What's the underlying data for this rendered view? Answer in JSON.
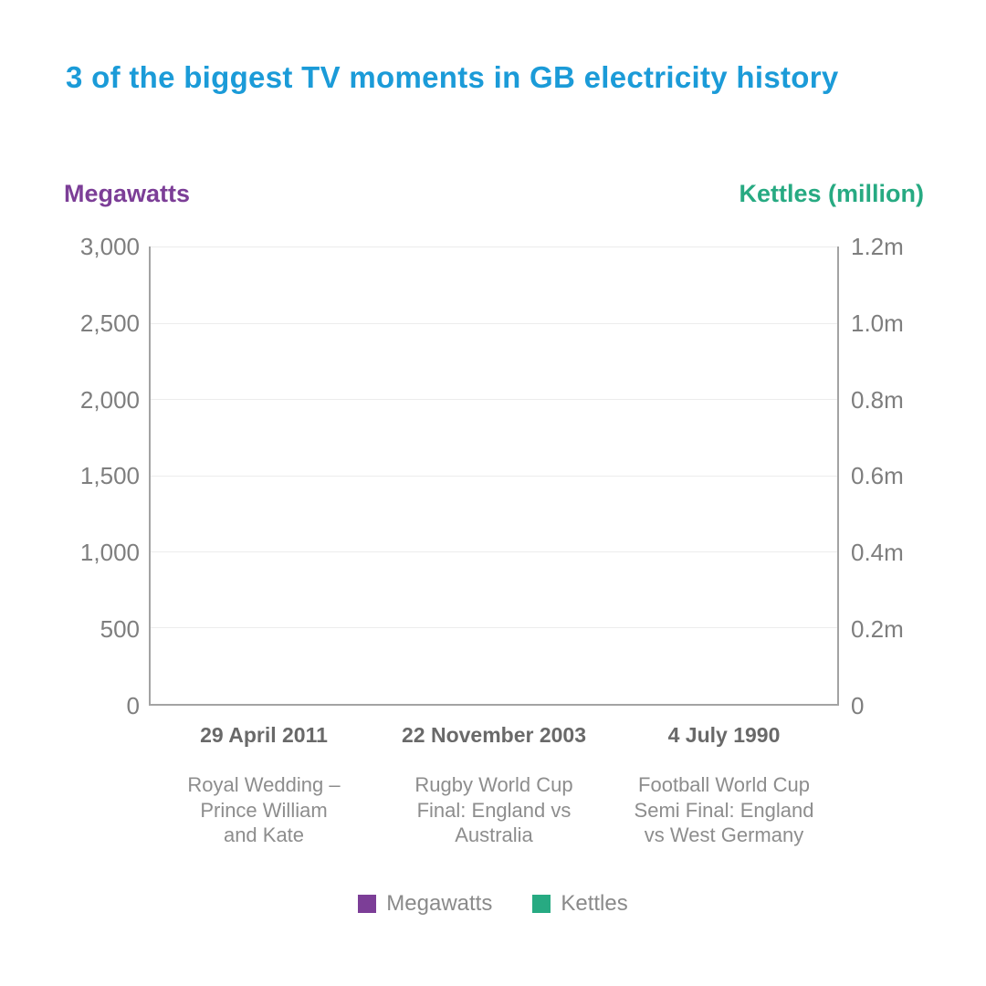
{
  "title": {
    "text": "3 of the biggest TV moments in GB electricity history",
    "color": "#1b9bd8"
  },
  "chart_data": {
    "type": "bar",
    "title": "3 of the biggest TV moments in GB electricity history",
    "categories": [
      {
        "date": "29 April 2011",
        "desc_lines": [
          "Royal Wedding –",
          "Prince William",
          "and Kate"
        ]
      },
      {
        "date": "22 November 2003",
        "desc_lines": [
          "Rugby World Cup",
          "Final: England vs",
          "Australia"
        ]
      },
      {
        "date": "4 July 1990",
        "desc_lines": [
          "Football World Cup",
          "Semi Final: England",
          "vs West Germany"
        ]
      }
    ],
    "left_axis": {
      "label": "Megawatts",
      "color": "#7c3e97",
      "tick_labels": [
        "3,000",
        "2,500",
        "2,000",
        "1,500",
        "1,000",
        "500",
        "0"
      ],
      "range": [
        0,
        3000
      ]
    },
    "right_axis": {
      "label": "Kettles (million)",
      "color": "#27aa82",
      "tick_labels": [
        "1.2m",
        "1.0m",
        "0.8m",
        "0.6m",
        "0.4m",
        "0.2m",
        "0"
      ],
      "range": [
        0,
        1.2
      ]
    },
    "series": [
      {
        "name": "Megawatts",
        "color": "#7c3e97",
        "axis": "left",
        "values": [
          null,
          null,
          null
        ]
      },
      {
        "name": "Kettles",
        "color": "#27aa82",
        "axis": "right",
        "values": [
          null,
          null,
          null
        ]
      }
    ],
    "bars_rendered": false,
    "grid": true,
    "legend_position": "bottom"
  },
  "colors": {
    "background": "#ffffff",
    "axis_line": "#a3a3a3",
    "gridline": "#ececec",
    "tick_label": "#7e7e7e",
    "category_date": "#696969",
    "category_desc": "#8d8d8d",
    "legend_label": "#8a8a8a"
  }
}
